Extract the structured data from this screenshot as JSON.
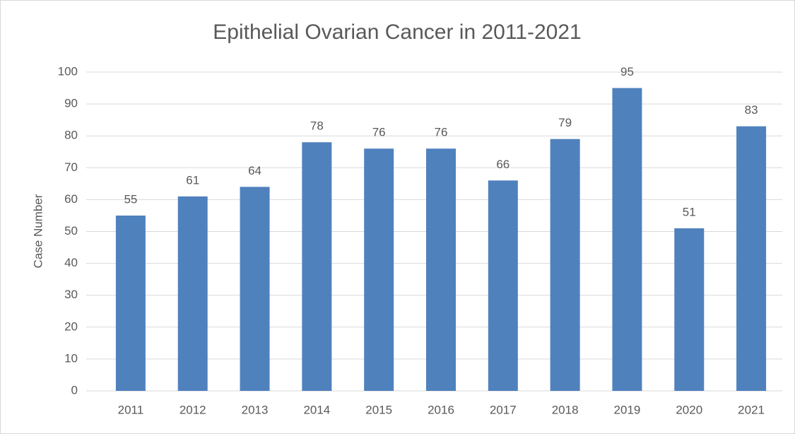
{
  "chart_data": {
    "type": "bar",
    "title": "Epithelial Ovarian Cancer in 2011-2021",
    "y_label": "Case Number",
    "categories": [
      "2011",
      "2012",
      "2013",
      "2014",
      "2015",
      "2016",
      "2017",
      "2018",
      "2019",
      "2020",
      "2021"
    ],
    "values": [
      55,
      61,
      64,
      78,
      76,
      76,
      66,
      79,
      95,
      51,
      83
    ],
    "color": "#4f81bd",
    "ylim": [
      0,
      100
    ],
    "yticks": [
      0,
      10,
      20,
      30,
      40,
      50,
      60,
      70,
      80,
      90,
      100
    ],
    "grid": true
  }
}
